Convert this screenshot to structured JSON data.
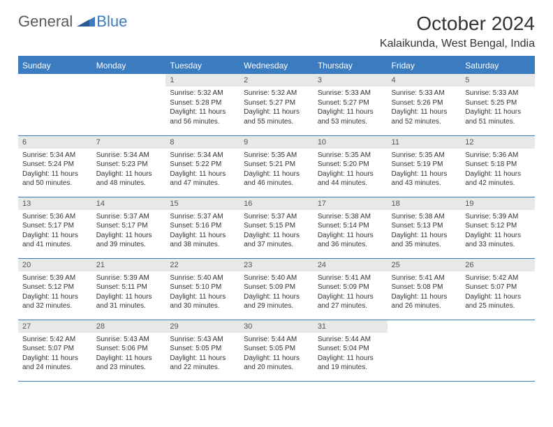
{
  "logo": {
    "text1": "General",
    "text2": "Blue"
  },
  "title": "October 2024",
  "location": "Kalaikunda, West Bengal, India",
  "colors": {
    "header_bg": "#3b7bbf",
    "header_text": "#ffffff",
    "daynum_bg": "#e8e8e8",
    "border": "#3b7bbf",
    "text": "#333333"
  },
  "dayNames": [
    "Sunday",
    "Monday",
    "Tuesday",
    "Wednesday",
    "Thursday",
    "Friday",
    "Saturday"
  ],
  "weeks": [
    [
      {
        "empty": true
      },
      {
        "empty": true
      },
      {
        "num": "1",
        "sunrise": "5:32 AM",
        "sunset": "5:28 PM",
        "daylight": "11 hours and 56 minutes."
      },
      {
        "num": "2",
        "sunrise": "5:32 AM",
        "sunset": "5:27 PM",
        "daylight": "11 hours and 55 minutes."
      },
      {
        "num": "3",
        "sunrise": "5:33 AM",
        "sunset": "5:27 PM",
        "daylight": "11 hours and 53 minutes."
      },
      {
        "num": "4",
        "sunrise": "5:33 AM",
        "sunset": "5:26 PM",
        "daylight": "11 hours and 52 minutes."
      },
      {
        "num": "5",
        "sunrise": "5:33 AM",
        "sunset": "5:25 PM",
        "daylight": "11 hours and 51 minutes."
      }
    ],
    [
      {
        "num": "6",
        "sunrise": "5:34 AM",
        "sunset": "5:24 PM",
        "daylight": "11 hours and 50 minutes."
      },
      {
        "num": "7",
        "sunrise": "5:34 AM",
        "sunset": "5:23 PM",
        "daylight": "11 hours and 48 minutes."
      },
      {
        "num": "8",
        "sunrise": "5:34 AM",
        "sunset": "5:22 PM",
        "daylight": "11 hours and 47 minutes."
      },
      {
        "num": "9",
        "sunrise": "5:35 AM",
        "sunset": "5:21 PM",
        "daylight": "11 hours and 46 minutes."
      },
      {
        "num": "10",
        "sunrise": "5:35 AM",
        "sunset": "5:20 PM",
        "daylight": "11 hours and 44 minutes."
      },
      {
        "num": "11",
        "sunrise": "5:35 AM",
        "sunset": "5:19 PM",
        "daylight": "11 hours and 43 minutes."
      },
      {
        "num": "12",
        "sunrise": "5:36 AM",
        "sunset": "5:18 PM",
        "daylight": "11 hours and 42 minutes."
      }
    ],
    [
      {
        "num": "13",
        "sunrise": "5:36 AM",
        "sunset": "5:17 PM",
        "daylight": "11 hours and 41 minutes."
      },
      {
        "num": "14",
        "sunrise": "5:37 AM",
        "sunset": "5:17 PM",
        "daylight": "11 hours and 39 minutes."
      },
      {
        "num": "15",
        "sunrise": "5:37 AM",
        "sunset": "5:16 PM",
        "daylight": "11 hours and 38 minutes."
      },
      {
        "num": "16",
        "sunrise": "5:37 AM",
        "sunset": "5:15 PM",
        "daylight": "11 hours and 37 minutes."
      },
      {
        "num": "17",
        "sunrise": "5:38 AM",
        "sunset": "5:14 PM",
        "daylight": "11 hours and 36 minutes."
      },
      {
        "num": "18",
        "sunrise": "5:38 AM",
        "sunset": "5:13 PM",
        "daylight": "11 hours and 35 minutes."
      },
      {
        "num": "19",
        "sunrise": "5:39 AM",
        "sunset": "5:12 PM",
        "daylight": "11 hours and 33 minutes."
      }
    ],
    [
      {
        "num": "20",
        "sunrise": "5:39 AM",
        "sunset": "5:12 PM",
        "daylight": "11 hours and 32 minutes."
      },
      {
        "num": "21",
        "sunrise": "5:39 AM",
        "sunset": "5:11 PM",
        "daylight": "11 hours and 31 minutes."
      },
      {
        "num": "22",
        "sunrise": "5:40 AM",
        "sunset": "5:10 PM",
        "daylight": "11 hours and 30 minutes."
      },
      {
        "num": "23",
        "sunrise": "5:40 AM",
        "sunset": "5:09 PM",
        "daylight": "11 hours and 29 minutes."
      },
      {
        "num": "24",
        "sunrise": "5:41 AM",
        "sunset": "5:09 PM",
        "daylight": "11 hours and 27 minutes."
      },
      {
        "num": "25",
        "sunrise": "5:41 AM",
        "sunset": "5:08 PM",
        "daylight": "11 hours and 26 minutes."
      },
      {
        "num": "26",
        "sunrise": "5:42 AM",
        "sunset": "5:07 PM",
        "daylight": "11 hours and 25 minutes."
      }
    ],
    [
      {
        "num": "27",
        "sunrise": "5:42 AM",
        "sunset": "5:07 PM",
        "daylight": "11 hours and 24 minutes."
      },
      {
        "num": "28",
        "sunrise": "5:43 AM",
        "sunset": "5:06 PM",
        "daylight": "11 hours and 23 minutes."
      },
      {
        "num": "29",
        "sunrise": "5:43 AM",
        "sunset": "5:05 PM",
        "daylight": "11 hours and 22 minutes."
      },
      {
        "num": "30",
        "sunrise": "5:44 AM",
        "sunset": "5:05 PM",
        "daylight": "11 hours and 20 minutes."
      },
      {
        "num": "31",
        "sunrise": "5:44 AM",
        "sunset": "5:04 PM",
        "daylight": "11 hours and 19 minutes."
      },
      {
        "empty": true
      },
      {
        "empty": true
      }
    ]
  ],
  "labels": {
    "sunrise": "Sunrise: ",
    "sunset": "Sunset: ",
    "daylight": "Daylight: "
  }
}
